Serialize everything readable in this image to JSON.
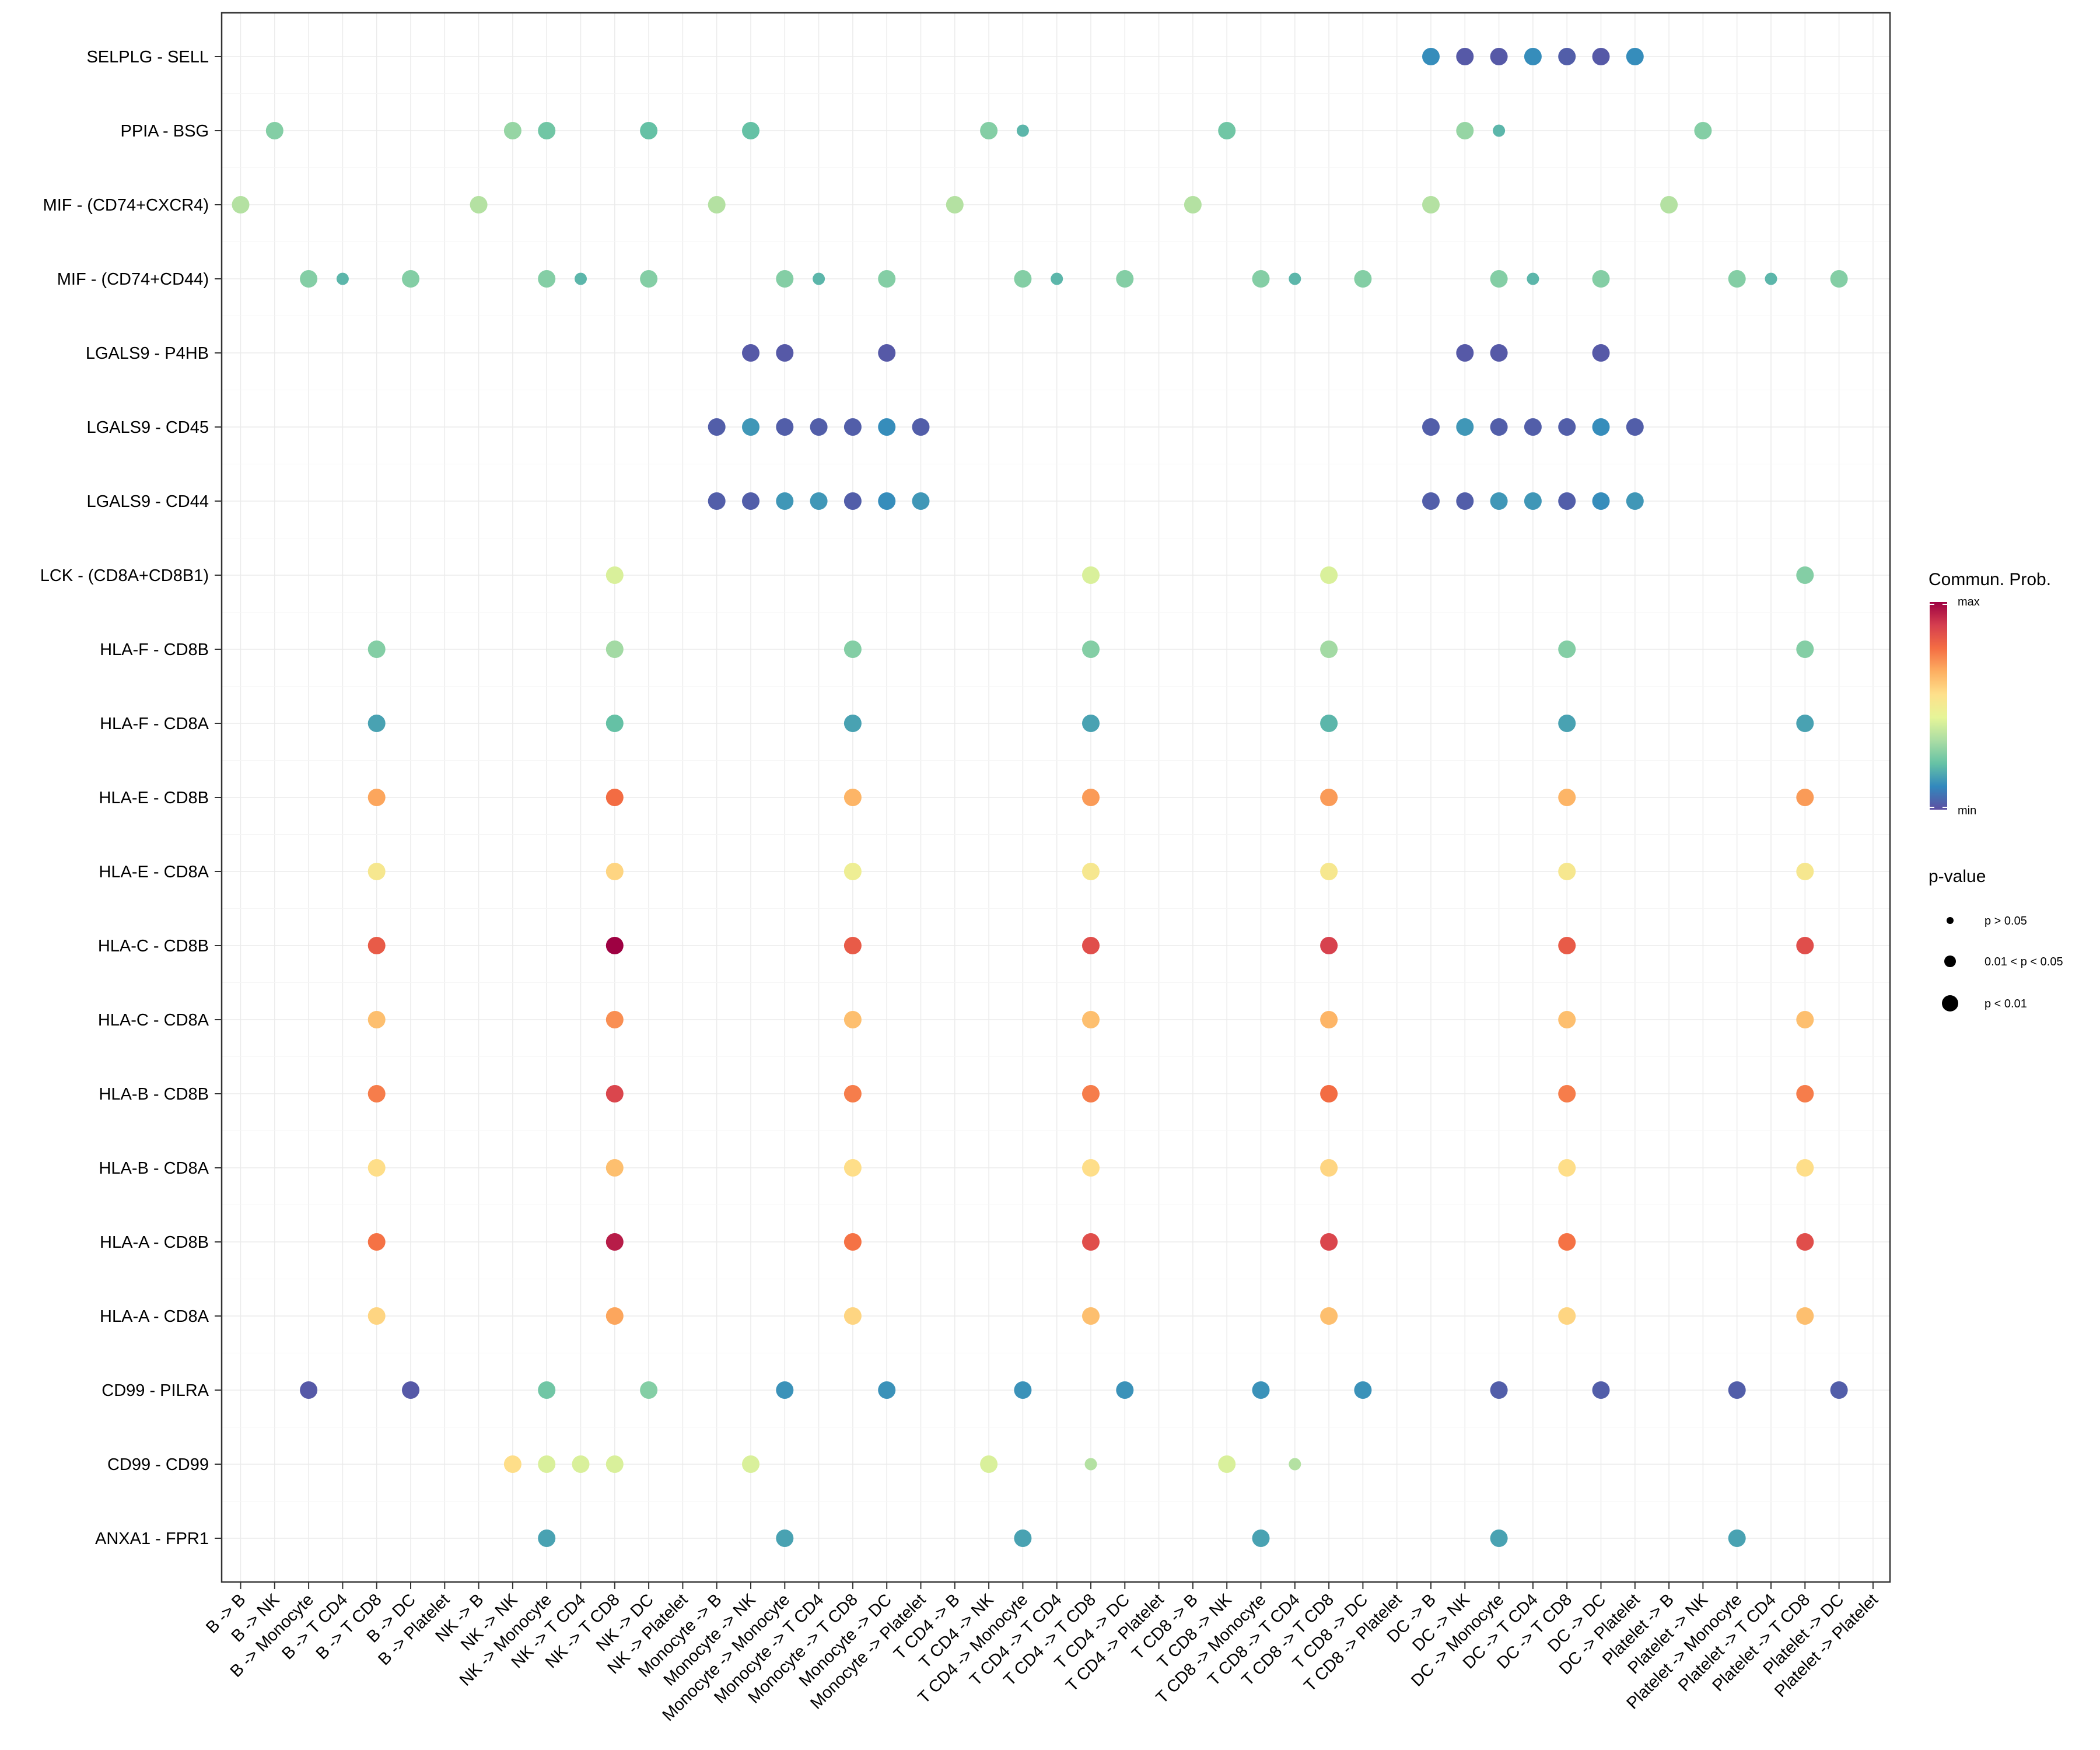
{
  "chart_data": {
    "type": "scatter",
    "title": "",
    "xlabel": "",
    "ylabel": "",
    "grid": true,
    "x_categories": [
      "B -> B",
      "B -> NK",
      "B -> Monocyte",
      "B -> T CD4",
      "B -> T CD8",
      "B -> DC",
      "B -> Platelet",
      "NK -> B",
      "NK -> NK",
      "NK -> Monocyte",
      "NK -> T CD4",
      "NK -> T CD8",
      "NK -> DC",
      "NK -> Platelet",
      "Monocyte -> B",
      "Monocyte -> NK",
      "Monocyte -> Monocyte",
      "Monocyte -> T CD4",
      "Monocyte -> T CD8",
      "Monocyte -> DC",
      "Monocyte -> Platelet",
      "T CD4 -> B",
      "T CD4 -> NK",
      "T CD4 -> Monocyte",
      "T CD4 -> T CD4",
      "T CD4 -> T CD8",
      "T CD4 -> DC",
      "T CD4 -> Platelet",
      "T CD8 -> B",
      "T CD8 -> NK",
      "T CD8 -> Monocyte",
      "T CD8 -> T CD4",
      "T CD8 -> T CD8",
      "T CD8 -> DC",
      "T CD8 -> Platelet",
      "DC -> B",
      "DC -> NK",
      "DC -> Monocyte",
      "DC -> T CD4",
      "DC -> T CD8",
      "DC -> DC",
      "DC -> Platelet",
      "Platelet -> B",
      "Platelet -> NK",
      "Platelet -> Monocyte",
      "Platelet -> T CD4",
      "Platelet -> T CD8",
      "Platelet -> DC",
      "Platelet -> Platelet"
    ],
    "y_categories": [
      "SELPLG - SELL",
      "PPIA - BSG",
      "MIF - (CD74+CXCR4)",
      "MIF - (CD74+CD44)",
      "LGALS9 - P4HB",
      "LGALS9 - CD45",
      "LGALS9 - CD44",
      "LCK - (CD8A+CD8B1)",
      "HLA-F - CD8B",
      "HLA-F - CD8A",
      "HLA-E - CD8B",
      "HLA-E - CD8A",
      "HLA-C - CD8B",
      "HLA-C - CD8A",
      "HLA-B - CD8B",
      "HLA-B - CD8A",
      "HLA-A - CD8B",
      "HLA-A - CD8A",
      "CD99 - PILRA",
      "CD99 - CD99",
      "ANXA1 - FPR1"
    ],
    "point_fields": [
      "x_index",
      "y_index",
      "prob_scaled_0_to_1",
      "pvalue_class"
    ],
    "pvalue_classes": [
      0,
      1,
      2
    ],
    "points": [
      [
        35,
        0,
        0.12,
        2
      ],
      [
        36,
        0,
        0.02,
        2
      ],
      [
        37,
        0,
        0.02,
        2
      ],
      [
        38,
        0,
        0.12,
        2
      ],
      [
        39,
        0,
        0.03,
        2
      ],
      [
        40,
        0,
        0.02,
        2
      ],
      [
        41,
        0,
        0.12,
        2
      ],
      [
        1,
        1,
        0.27,
        2
      ],
      [
        8,
        1,
        0.3,
        2
      ],
      [
        9,
        1,
        0.24,
        2
      ],
      [
        12,
        1,
        0.22,
        2
      ],
      [
        15,
        1,
        0.22,
        2
      ],
      [
        22,
        1,
        0.27,
        2
      ],
      [
        23,
        1,
        0.2,
        1
      ],
      [
        29,
        1,
        0.24,
        2
      ],
      [
        36,
        1,
        0.3,
        2
      ],
      [
        37,
        1,
        0.2,
        1
      ],
      [
        43,
        1,
        0.27,
        2
      ],
      [
        0,
        2,
        0.35,
        2
      ],
      [
        7,
        2,
        0.35,
        2
      ],
      [
        14,
        2,
        0.35,
        2
      ],
      [
        21,
        2,
        0.35,
        2
      ],
      [
        28,
        2,
        0.35,
        2
      ],
      [
        35,
        2,
        0.35,
        2
      ],
      [
        42,
        2,
        0.35,
        2
      ],
      [
        2,
        3,
        0.27,
        2
      ],
      [
        3,
        3,
        0.2,
        1
      ],
      [
        5,
        3,
        0.27,
        2
      ],
      [
        9,
        3,
        0.27,
        2
      ],
      [
        10,
        3,
        0.2,
        1
      ],
      [
        12,
        3,
        0.27,
        2
      ],
      [
        16,
        3,
        0.27,
        2
      ],
      [
        17,
        3,
        0.2,
        1
      ],
      [
        19,
        3,
        0.27,
        2
      ],
      [
        23,
        3,
        0.27,
        2
      ],
      [
        24,
        3,
        0.2,
        1
      ],
      [
        26,
        3,
        0.27,
        2
      ],
      [
        30,
        3,
        0.27,
        2
      ],
      [
        31,
        3,
        0.2,
        1
      ],
      [
        33,
        3,
        0.27,
        2
      ],
      [
        37,
        3,
        0.27,
        2
      ],
      [
        38,
        3,
        0.2,
        1
      ],
      [
        40,
        3,
        0.27,
        2
      ],
      [
        44,
        3,
        0.27,
        2
      ],
      [
        45,
        3,
        0.2,
        1
      ],
      [
        47,
        3,
        0.27,
        2
      ],
      [
        15,
        4,
        0.02,
        2
      ],
      [
        16,
        4,
        0.02,
        2
      ],
      [
        19,
        4,
        0.02,
        2
      ],
      [
        36,
        4,
        0.02,
        2
      ],
      [
        37,
        4,
        0.02,
        2
      ],
      [
        40,
        4,
        0.02,
        2
      ],
      [
        14,
        5,
        0.03,
        2
      ],
      [
        15,
        5,
        0.14,
        2
      ],
      [
        16,
        5,
        0.03,
        2
      ],
      [
        17,
        5,
        0.03,
        2
      ],
      [
        18,
        5,
        0.03,
        2
      ],
      [
        19,
        5,
        0.12,
        2
      ],
      [
        20,
        5,
        0.03,
        2
      ],
      [
        35,
        5,
        0.03,
        2
      ],
      [
        36,
        5,
        0.14,
        2
      ],
      [
        37,
        5,
        0.03,
        2
      ],
      [
        38,
        5,
        0.03,
        2
      ],
      [
        39,
        5,
        0.03,
        2
      ],
      [
        40,
        5,
        0.12,
        2
      ],
      [
        41,
        5,
        0.03,
        2
      ],
      [
        14,
        6,
        0.03,
        2
      ],
      [
        15,
        6,
        0.03,
        2
      ],
      [
        16,
        6,
        0.14,
        2
      ],
      [
        17,
        6,
        0.14,
        2
      ],
      [
        18,
        6,
        0.03,
        2
      ],
      [
        19,
        6,
        0.12,
        2
      ],
      [
        20,
        6,
        0.14,
        2
      ],
      [
        35,
        6,
        0.03,
        2
      ],
      [
        36,
        6,
        0.03,
        2
      ],
      [
        37,
        6,
        0.14,
        2
      ],
      [
        38,
        6,
        0.14,
        2
      ],
      [
        39,
        6,
        0.03,
        2
      ],
      [
        40,
        6,
        0.12,
        2
      ],
      [
        41,
        6,
        0.14,
        2
      ],
      [
        11,
        7,
        0.42,
        2
      ],
      [
        25,
        7,
        0.42,
        2
      ],
      [
        32,
        7,
        0.42,
        2
      ],
      [
        46,
        7,
        0.27,
        2
      ],
      [
        4,
        8,
        0.27,
        2
      ],
      [
        11,
        8,
        0.32,
        2
      ],
      [
        18,
        8,
        0.27,
        2
      ],
      [
        25,
        8,
        0.27,
        2
      ],
      [
        32,
        8,
        0.32,
        2
      ],
      [
        39,
        8,
        0.27,
        2
      ],
      [
        46,
        8,
        0.27,
        2
      ],
      [
        4,
        9,
        0.16,
        2
      ],
      [
        11,
        9,
        0.22,
        2
      ],
      [
        18,
        9,
        0.16,
        2
      ],
      [
        25,
        9,
        0.16,
        2
      ],
      [
        32,
        9,
        0.2,
        2
      ],
      [
        39,
        9,
        0.16,
        2
      ],
      [
        46,
        9,
        0.16,
        2
      ],
      [
        4,
        10,
        0.68,
        2
      ],
      [
        11,
        10,
        0.78,
        2
      ],
      [
        18,
        10,
        0.65,
        2
      ],
      [
        25,
        10,
        0.7,
        2
      ],
      [
        32,
        10,
        0.7,
        2
      ],
      [
        39,
        10,
        0.65,
        2
      ],
      [
        46,
        10,
        0.7,
        2
      ],
      [
        4,
        11,
        0.52,
        2
      ],
      [
        11,
        11,
        0.58,
        2
      ],
      [
        18,
        11,
        0.48,
        2
      ],
      [
        25,
        11,
        0.52,
        2
      ],
      [
        32,
        11,
        0.52,
        2
      ],
      [
        39,
        11,
        0.52,
        2
      ],
      [
        46,
        11,
        0.52,
        2
      ],
      [
        4,
        12,
        0.82,
        2
      ],
      [
        11,
        12,
        1.0,
        2
      ],
      [
        18,
        12,
        0.82,
        2
      ],
      [
        25,
        12,
        0.85,
        2
      ],
      [
        32,
        12,
        0.88,
        2
      ],
      [
        39,
        12,
        0.82,
        2
      ],
      [
        46,
        12,
        0.85,
        2
      ],
      [
        4,
        13,
        0.63,
        2
      ],
      [
        11,
        13,
        0.72,
        2
      ],
      [
        18,
        13,
        0.63,
        2
      ],
      [
        25,
        13,
        0.63,
        2
      ],
      [
        32,
        13,
        0.65,
        2
      ],
      [
        39,
        13,
        0.63,
        2
      ],
      [
        46,
        13,
        0.63,
        2
      ],
      [
        4,
        14,
        0.75,
        2
      ],
      [
        11,
        14,
        0.87,
        2
      ],
      [
        18,
        14,
        0.75,
        2
      ],
      [
        25,
        14,
        0.75,
        2
      ],
      [
        32,
        14,
        0.78,
        2
      ],
      [
        39,
        14,
        0.75,
        2
      ],
      [
        46,
        14,
        0.75,
        2
      ],
      [
        4,
        15,
        0.56,
        2
      ],
      [
        11,
        15,
        0.63,
        2
      ],
      [
        18,
        15,
        0.56,
        2
      ],
      [
        25,
        15,
        0.56,
        2
      ],
      [
        32,
        15,
        0.58,
        2
      ],
      [
        39,
        15,
        0.56,
        2
      ],
      [
        46,
        15,
        0.56,
        2
      ],
      [
        4,
        16,
        0.77,
        2
      ],
      [
        11,
        16,
        0.95,
        2
      ],
      [
        18,
        16,
        0.77,
        2
      ],
      [
        25,
        16,
        0.85,
        2
      ],
      [
        32,
        16,
        0.87,
        2
      ],
      [
        39,
        16,
        0.77,
        2
      ],
      [
        46,
        16,
        0.85,
        2
      ],
      [
        4,
        17,
        0.58,
        2
      ],
      [
        11,
        17,
        0.68,
        2
      ],
      [
        18,
        17,
        0.58,
        2
      ],
      [
        25,
        17,
        0.63,
        2
      ],
      [
        32,
        17,
        0.63,
        2
      ],
      [
        39,
        17,
        0.58,
        2
      ],
      [
        46,
        17,
        0.63,
        2
      ],
      [
        2,
        18,
        0.02,
        2
      ],
      [
        5,
        18,
        0.02,
        2
      ],
      [
        9,
        18,
        0.24,
        2
      ],
      [
        12,
        18,
        0.27,
        2
      ],
      [
        16,
        18,
        0.13,
        2
      ],
      [
        19,
        18,
        0.13,
        2
      ],
      [
        23,
        18,
        0.13,
        2
      ],
      [
        26,
        18,
        0.13,
        2
      ],
      [
        30,
        18,
        0.13,
        2
      ],
      [
        33,
        18,
        0.13,
        2
      ],
      [
        37,
        18,
        0.03,
        2
      ],
      [
        40,
        18,
        0.03,
        2
      ],
      [
        44,
        18,
        0.03,
        2
      ],
      [
        47,
        18,
        0.03,
        2
      ],
      [
        8,
        19,
        0.56,
        2
      ],
      [
        9,
        19,
        0.42,
        2
      ],
      [
        10,
        19,
        0.42,
        2
      ],
      [
        11,
        19,
        0.42,
        2
      ],
      [
        15,
        19,
        0.42,
        2
      ],
      [
        22,
        19,
        0.42,
        2
      ],
      [
        25,
        19,
        0.35,
        1
      ],
      [
        29,
        19,
        0.42,
        2
      ],
      [
        31,
        19,
        0.35,
        1
      ],
      [
        9,
        20,
        0.16,
        2
      ],
      [
        16,
        20,
        0.16,
        2
      ],
      [
        23,
        20,
        0.16,
        2
      ],
      [
        30,
        20,
        0.16,
        2
      ],
      [
        37,
        20,
        0.16,
        2
      ],
      [
        44,
        20,
        0.16,
        2
      ]
    ],
    "color_scale": {
      "title": "Commun. Prob.",
      "low_label": "min",
      "high_label": "max",
      "colors": [
        "#5E4FA2",
        "#3288BD",
        "#66C2A5",
        "#ABDDA4",
        "#E6F598",
        "#FEE08B",
        "#FDAE61",
        "#F46D43",
        "#D53E4F",
        "#9E0142"
      ]
    },
    "size_legend": {
      "title": "p-value",
      "labels": [
        "p > 0.05",
        "0.01 < p < 0.05",
        "p < 0.01"
      ]
    },
    "legend_position": "right"
  }
}
